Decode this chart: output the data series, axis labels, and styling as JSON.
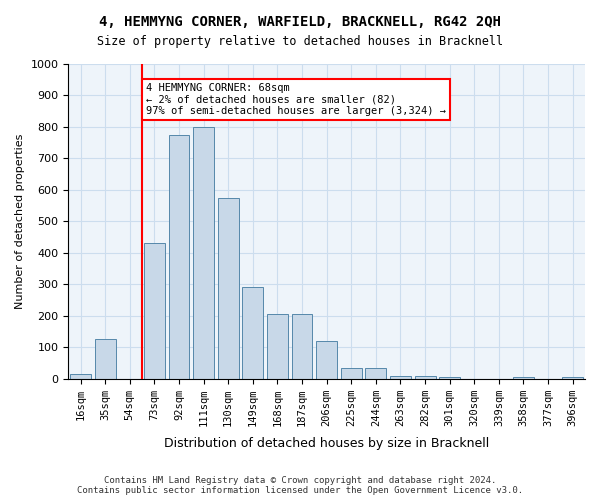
{
  "title_line1": "4, HEMMYNG CORNER, WARFIELD, BRACKNELL, RG42 2QH",
  "title_line2": "Size of property relative to detached houses in Bracknell",
  "xlabel": "Distribution of detached houses by size in Bracknell",
  "ylabel": "Number of detached properties",
  "footnote": "Contains HM Land Registry data © Crown copyright and database right 2024.\nContains public sector information licensed under the Open Government Licence v3.0.",
  "bin_labels": [
    "16sqm",
    "35sqm",
    "54sqm",
    "73sqm",
    "92sqm",
    "111sqm",
    "130sqm",
    "149sqm",
    "168sqm",
    "187sqm",
    "206sqm",
    "225sqm",
    "244sqm",
    "263sqm",
    "282sqm",
    "301sqm",
    "320sqm",
    "339sqm",
    "358sqm",
    "377sqm",
    "396sqm"
  ],
  "bar_values": [
    15,
    125,
    0,
    430,
    775,
    800,
    575,
    290,
    205,
    205,
    120,
    35,
    35,
    10,
    10,
    5,
    0,
    0,
    5,
    0,
    5
  ],
  "bar_color": "#c8d8e8",
  "bar_edge_color": "#5588aa",
  "grid_color": "#ccddee",
  "vline_x": 2,
  "vline_color": "red",
  "annotation_text": "4 HEMMYNG CORNER: 68sqm\n← 2% of detached houses are smaller (82)\n97% of semi-detached houses are larger (3,324) →",
  "annotation_box_color": "white",
  "annotation_box_edge_color": "red",
  "ylim": [
    0,
    1000
  ],
  "yticks": [
    0,
    100,
    200,
    300,
    400,
    500,
    600,
    700,
    800,
    900,
    1000
  ],
  "background_color": "#eef4fa"
}
